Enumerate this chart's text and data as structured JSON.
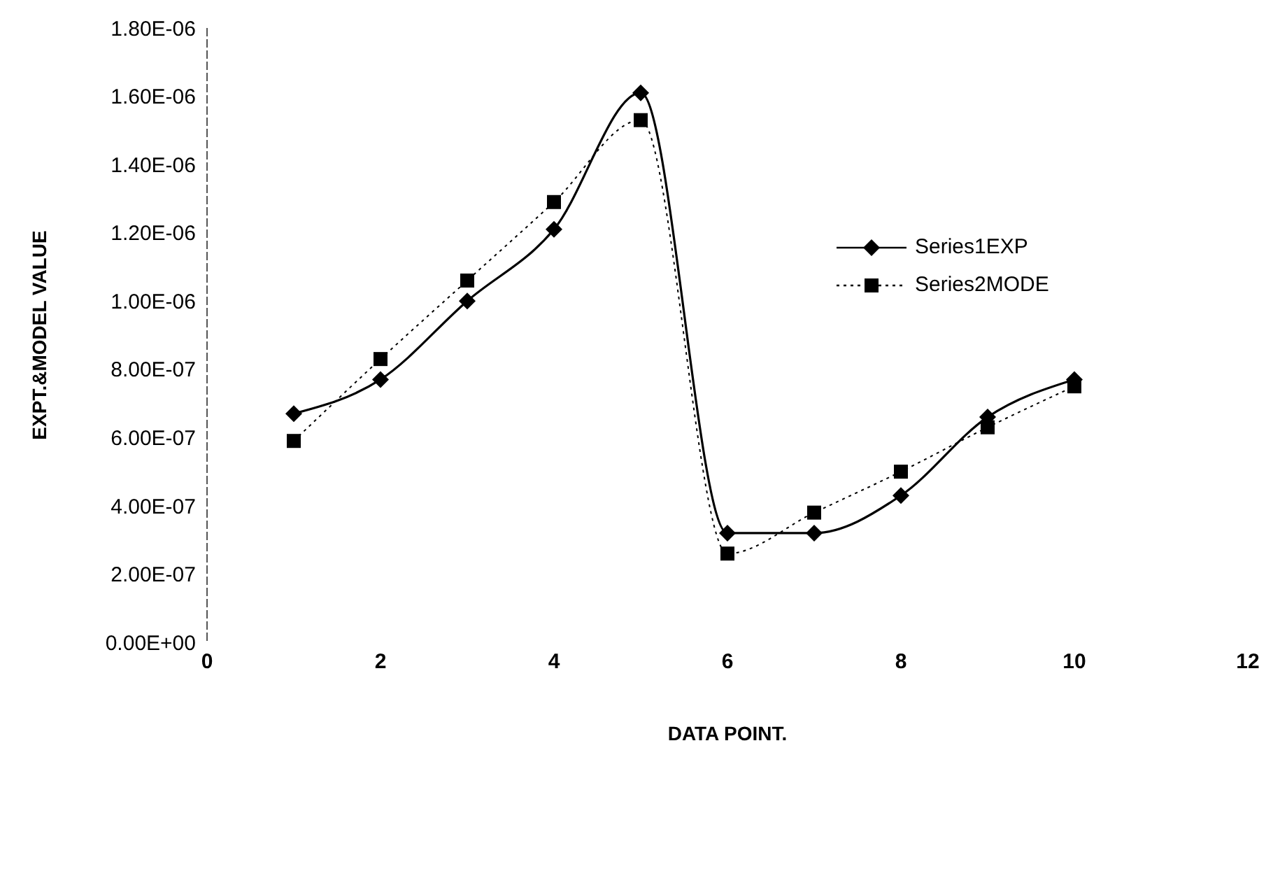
{
  "chart_data": {
    "type": "line",
    "xlabel": "DATA POINT.",
    "ylabel": "EXPT.&MODEL VALUE",
    "x": [
      1,
      2,
      3,
      4,
      5,
      6,
      7,
      8,
      9,
      10
    ],
    "series": [
      {
        "name": "Series1EXP",
        "color": "#000000",
        "marker": "diamond",
        "line_style": "solid",
        "values": [
          6.7e-07,
          7.7e-07,
          1e-06,
          1.21e-06,
          1.61e-06,
          3.2e-07,
          3.2e-07,
          4.3e-07,
          6.6e-07,
          7.7e-07
        ]
      },
      {
        "name": "Series2MODE",
        "color": "#000000",
        "marker": "square",
        "line_style": "dotted",
        "values": [
          5.9e-07,
          8.3e-07,
          1.06e-06,
          1.29e-06,
          1.53e-06,
          2.6e-07,
          3.8e-07,
          5e-07,
          6.3e-07,
          7.5e-07
        ]
      }
    ],
    "xlim": [
      0,
      12
    ],
    "xticks": [
      0,
      2,
      4,
      6,
      8,
      10,
      12
    ],
    "ylim": [
      0,
      1.8e-06
    ],
    "yticks": [
      {
        "value": 0,
        "label": "0.00E+00"
      },
      {
        "value": 2e-07,
        "label": "2.00E-07"
      },
      {
        "value": 4e-07,
        "label": "4.00E-07"
      },
      {
        "value": 6e-07,
        "label": "6.00E-07"
      },
      {
        "value": 8e-07,
        "label": "8.00E-07"
      },
      {
        "value": 1e-06,
        "label": "1.00E-06"
      },
      {
        "value": 1.2e-06,
        "label": "1.20E-06"
      },
      {
        "value": 1.4e-06,
        "label": "1.40E-06"
      },
      {
        "value": 1.6e-06,
        "label": "1.60E-06"
      },
      {
        "value": 1.8e-06,
        "label": "1.80E-06"
      }
    ],
    "grid": false,
    "legend": "right"
  }
}
